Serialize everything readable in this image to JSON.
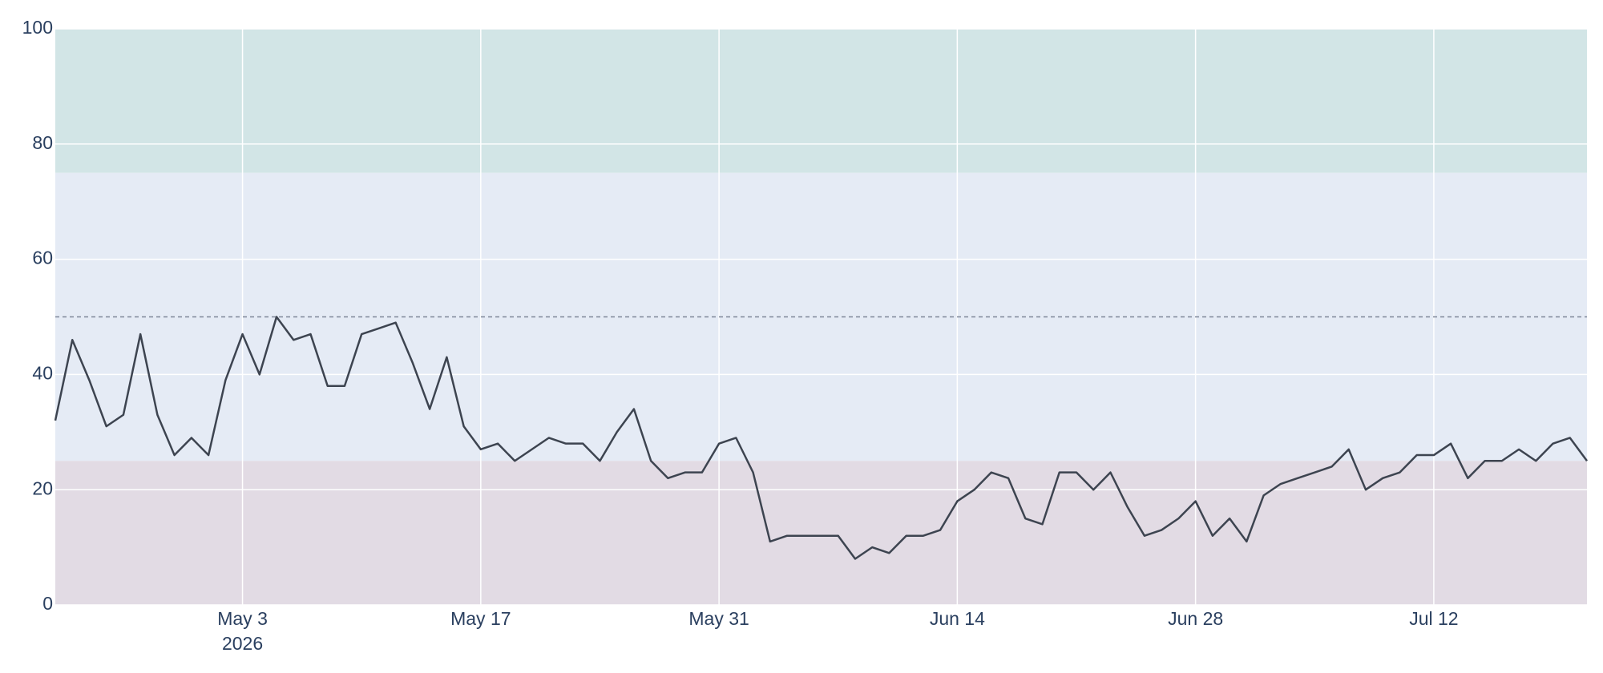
{
  "chart_data": {
    "type": "line",
    "x": [
      "2026-04-22",
      "2026-04-23",
      "2026-04-24",
      "2026-04-25",
      "2026-04-26",
      "2026-04-27",
      "2026-04-28",
      "2026-04-29",
      "2026-04-30",
      "2026-05-01",
      "2026-05-02",
      "2026-05-03",
      "2026-05-04",
      "2026-05-05",
      "2026-05-06",
      "2026-05-07",
      "2026-05-08",
      "2026-05-09",
      "2026-05-10",
      "2026-05-11",
      "2026-05-12",
      "2026-05-13",
      "2026-05-14",
      "2026-05-15",
      "2026-05-16",
      "2026-05-17",
      "2026-05-18",
      "2026-05-19",
      "2026-05-20",
      "2026-05-21",
      "2026-05-22",
      "2026-05-23",
      "2026-05-24",
      "2026-05-25",
      "2026-05-26",
      "2026-05-27",
      "2026-05-28",
      "2026-05-29",
      "2026-05-30",
      "2026-05-31",
      "2026-06-01",
      "2026-06-02",
      "2026-06-03",
      "2026-06-04",
      "2026-06-05",
      "2026-06-06",
      "2026-06-07",
      "2026-06-08",
      "2026-06-09",
      "2026-06-10",
      "2026-06-11",
      "2026-06-12",
      "2026-06-13",
      "2026-06-14",
      "2026-06-15",
      "2026-06-16",
      "2026-06-17",
      "2026-06-18",
      "2026-06-19",
      "2026-06-20",
      "2026-06-21",
      "2026-06-22",
      "2026-06-23",
      "2026-06-24",
      "2026-06-25",
      "2026-06-26",
      "2026-06-27",
      "2026-06-28",
      "2026-06-29",
      "2026-06-30",
      "2026-07-01",
      "2026-07-02",
      "2026-07-03",
      "2026-07-04",
      "2026-07-05",
      "2026-07-06",
      "2026-07-07",
      "2026-07-08",
      "2026-07-09",
      "2026-07-10",
      "2026-07-11",
      "2026-07-12",
      "2026-07-13",
      "2026-07-14",
      "2026-07-15",
      "2026-07-16",
      "2026-07-17",
      "2026-07-18",
      "2026-07-19",
      "2026-07-20",
      "2026-07-21"
    ],
    "values": [
      32,
      46,
      39,
      31,
      33,
      47,
      33,
      26,
      29,
      26,
      39,
      47,
      40,
      50,
      46,
      47,
      38,
      38,
      47,
      48,
      49,
      42,
      34,
      43,
      31,
      27,
      28,
      25,
      27,
      29,
      28,
      28,
      25,
      30,
      34,
      25,
      22,
      23,
      23,
      28,
      29,
      23,
      11,
      12,
      12,
      12,
      12,
      8,
      10,
      9,
      12,
      12,
      13,
      18,
      20,
      23,
      22,
      15,
      14,
      23,
      23,
      20,
      23,
      17,
      12,
      13,
      15,
      18,
      12,
      15,
      11,
      19,
      21,
      22,
      23,
      24,
      27,
      20,
      22,
      23,
      26,
      26,
      28,
      22,
      25,
      25,
      27,
      25,
      28,
      29,
      25
    ],
    "color": "#3d4450",
    "xlim": [
      "2026-04-22",
      "2026-07-21"
    ],
    "xticks": [
      {
        "value": "2026-05-03",
        "label": "May 3"
      },
      {
        "value": "2026-05-17",
        "label": "May 17"
      },
      {
        "value": "2026-05-31",
        "label": "May 31"
      },
      {
        "value": "2026-06-14",
        "label": "Jun 14"
      },
      {
        "value": "2026-06-28",
        "label": "Jun 28"
      },
      {
        "value": "2026-07-12",
        "label": "Jul 12"
      }
    ],
    "x_year_label": "2026",
    "ylim": [
      0,
      100
    ],
    "yticks": [
      0,
      20,
      40,
      60,
      80,
      100
    ],
    "grid": true,
    "bands": [
      {
        "from": 75,
        "to": 100,
        "color": "#d2e5e6"
      },
      {
        "from": 25,
        "to": 75,
        "color": "#e5ebf5"
      },
      {
        "from": 0,
        "to": 25,
        "color": "#e2dbe4"
      }
    ],
    "reference_line": 50
  }
}
